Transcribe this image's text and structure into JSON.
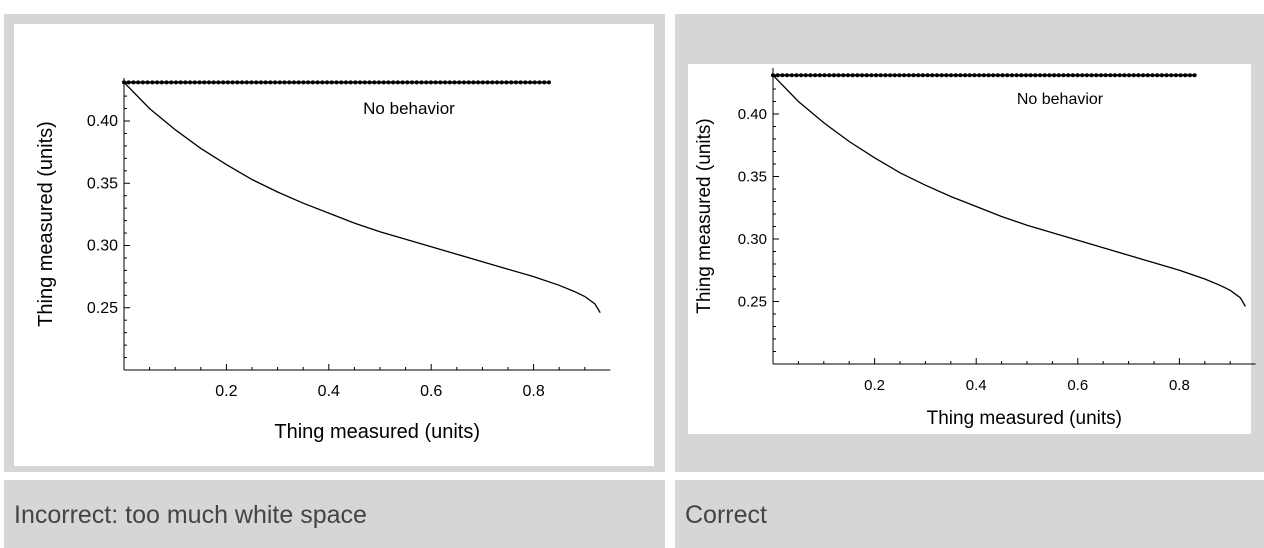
{
  "captions": {
    "left": "Incorrect: too much white space",
    "right": "Correct"
  },
  "chart_data": [
    {
      "type": "line",
      "panel": "incorrect",
      "xlabel": "Thing measured (units)",
      "ylabel": "Thing measured (units)",
      "xlim": [
        0,
        0.95
      ],
      "ylim": [
        0.2,
        0.435
      ],
      "x_ticks": [
        "0.2",
        "0.4",
        "0.6",
        "0.8"
      ],
      "y_ticks": [
        "0.25",
        "0.30",
        "0.35",
        "0.40"
      ],
      "annotation": "No behavior",
      "series": [
        {
          "style": "dotted-markers",
          "x": [
            0,
            0.83
          ],
          "y": [
            0.431,
            0.431
          ]
        },
        {
          "style": "line",
          "x": [
            0,
            0.05,
            0.1,
            0.15,
            0.2,
            0.25,
            0.3,
            0.35,
            0.4,
            0.45,
            0.5,
            0.55,
            0.6,
            0.65,
            0.7,
            0.75,
            0.8,
            0.85,
            0.88,
            0.9,
            0.92,
            0.93
          ],
          "y": [
            0.431,
            0.41,
            0.393,
            0.378,
            0.365,
            0.353,
            0.343,
            0.334,
            0.326,
            0.318,
            0.311,
            0.305,
            0.299,
            0.293,
            0.287,
            0.281,
            0.275,
            0.268,
            0.263,
            0.259,
            0.253,
            0.246
          ]
        }
      ]
    },
    {
      "type": "line",
      "panel": "correct",
      "xlabel": "Thing measured (units)",
      "ylabel": "Thing measured (units)",
      "xlim": [
        0,
        0.95
      ],
      "ylim": [
        0.2,
        0.435
      ],
      "x_ticks": [
        "0.2",
        "0.4",
        "0.6",
        "0.8"
      ],
      "y_ticks": [
        "0.25",
        "0.30",
        "0.35",
        "0.40"
      ],
      "annotation": "No behavior",
      "series": [
        {
          "style": "dotted-markers",
          "x": [
            0,
            0.83
          ],
          "y": [
            0.431,
            0.431
          ]
        },
        {
          "style": "line",
          "x": [
            0,
            0.05,
            0.1,
            0.15,
            0.2,
            0.25,
            0.3,
            0.35,
            0.4,
            0.45,
            0.5,
            0.55,
            0.6,
            0.65,
            0.7,
            0.75,
            0.8,
            0.85,
            0.88,
            0.9,
            0.92,
            0.93
          ],
          "y": [
            0.431,
            0.41,
            0.393,
            0.378,
            0.365,
            0.353,
            0.343,
            0.334,
            0.326,
            0.318,
            0.311,
            0.305,
            0.299,
            0.293,
            0.287,
            0.281,
            0.275,
            0.268,
            0.263,
            0.259,
            0.253,
            0.246
          ]
        }
      ]
    }
  ]
}
